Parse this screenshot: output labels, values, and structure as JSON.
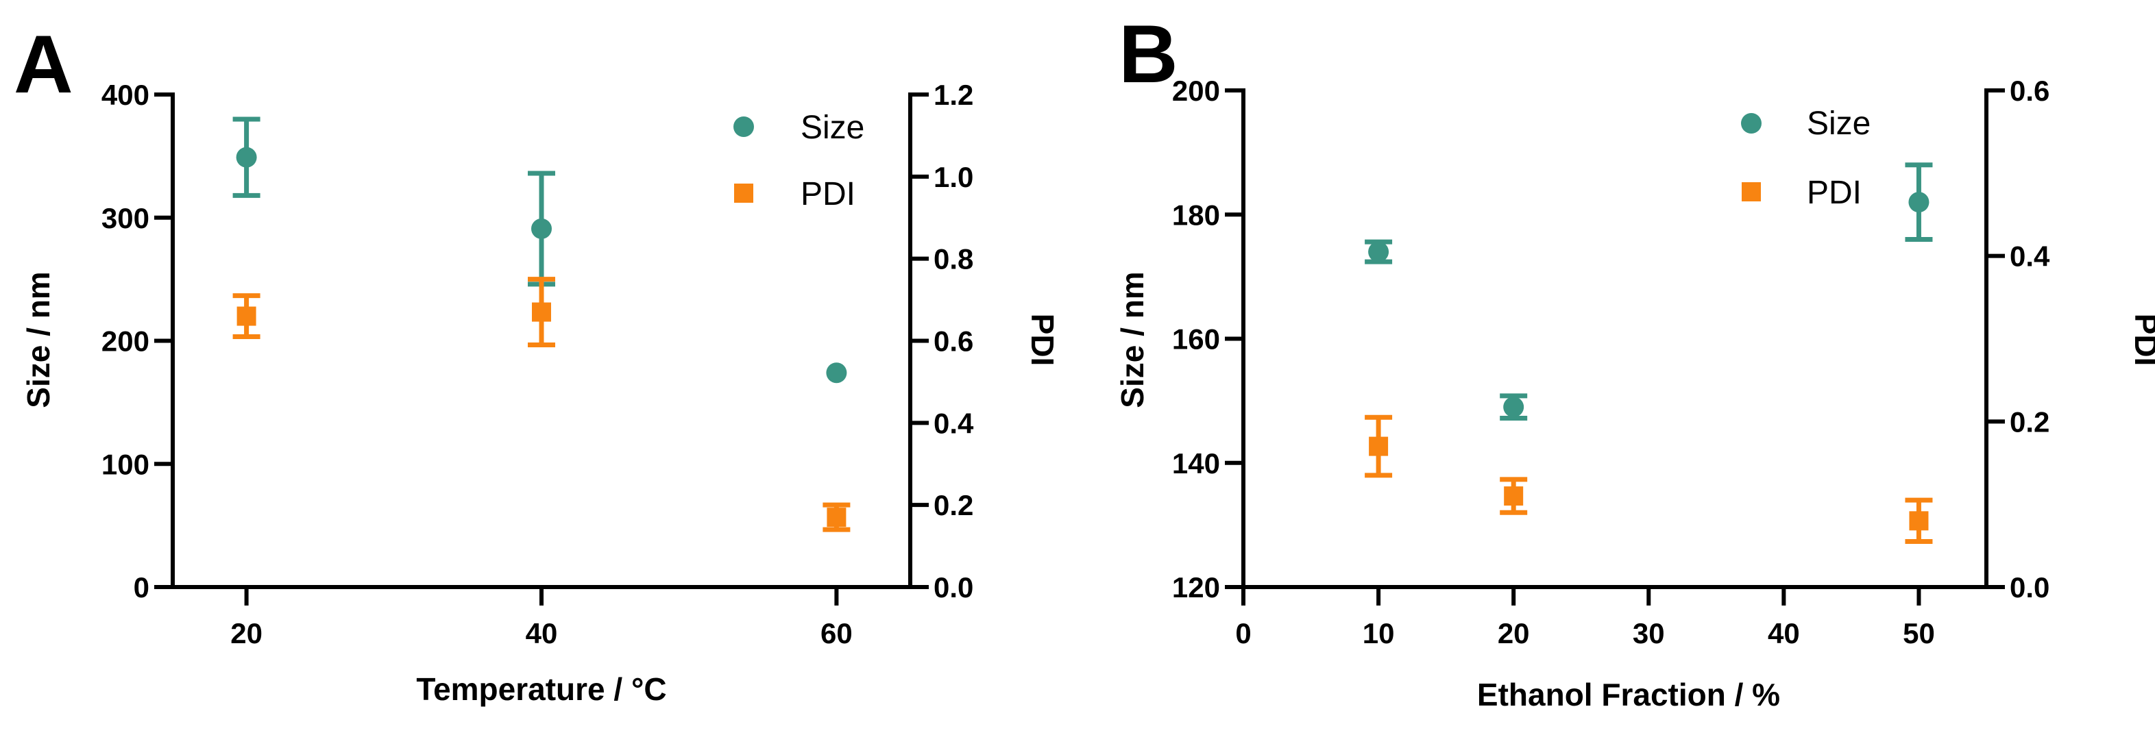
{
  "colors": {
    "size": "#3a9483",
    "pdi": "#f88411",
    "axis": "#000000"
  },
  "chart_data": [
    {
      "panel": "A",
      "type": "scatter",
      "xlabel": "Temperature / °C",
      "ylabel": "Size / nm",
      "y2label": "PDI",
      "xlim": [
        15,
        65
      ],
      "ylim": [
        0,
        400
      ],
      "y2lim": [
        0,
        1.2
      ],
      "xticks": [
        20,
        40,
        60
      ],
      "yticks": [
        0,
        100,
        200,
        300,
        400
      ],
      "y2ticks": [
        "0.0",
        "0.2",
        "0.4",
        "0.6",
        "0.8",
        "1.0",
        "1.2"
      ],
      "legend": [
        "Size",
        "PDI"
      ],
      "series": [
        {
          "name": "Size",
          "axis": "left",
          "marker": "circle",
          "x": [
            20,
            40,
            60
          ],
          "y": [
            349,
            291,
            174
          ],
          "err": [
            31,
            45,
            0
          ]
        },
        {
          "name": "PDI",
          "axis": "right",
          "marker": "square",
          "x": [
            20,
            40,
            60
          ],
          "y": [
            0.66,
            0.67,
            0.17
          ],
          "err": [
            0.05,
            0.08,
            0.03
          ]
        }
      ]
    },
    {
      "panel": "B",
      "type": "scatter",
      "xlabel": "Ethanol Fraction / %",
      "ylabel": "Size / nm",
      "y2label": "PDI",
      "xlim": [
        0,
        55
      ],
      "ylim": [
        120,
        200
      ],
      "y2lim": [
        0,
        0.6
      ],
      "xticks": [
        0,
        10,
        20,
        30,
        40,
        50
      ],
      "yticks": [
        120,
        140,
        160,
        180,
        200
      ],
      "y2ticks": [
        "0.0",
        "0.2",
        "0.4",
        "0.6"
      ],
      "legend": [
        "Size",
        "PDI"
      ],
      "series": [
        {
          "name": "Size",
          "axis": "left",
          "marker": "circle",
          "x": [
            10,
            20,
            50
          ],
          "y": [
            174,
            149,
            182
          ],
          "err": [
            1.6,
            1.8,
            6
          ]
        },
        {
          "name": "PDI",
          "axis": "right",
          "marker": "square",
          "x": [
            10,
            20,
            50
          ],
          "y": [
            0.17,
            0.11,
            0.08
          ],
          "err": [
            0.035,
            0.02,
            0.025
          ]
        }
      ]
    }
  ]
}
